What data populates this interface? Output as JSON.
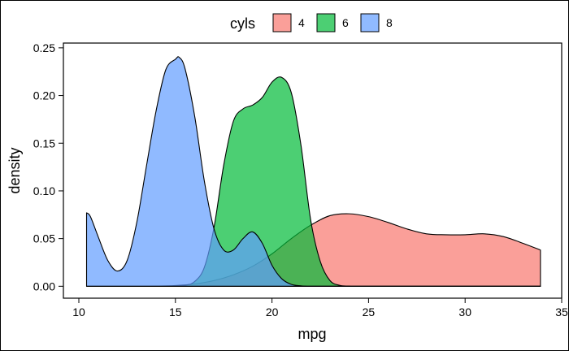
{
  "chart_data": {
    "type": "area",
    "subtype": "density",
    "xlabel": "mpg",
    "ylabel": "density",
    "xlim": [
      9.2,
      35
    ],
    "ylim": [
      -0.0125,
      0.255
    ],
    "x_ticks": [
      10,
      15,
      20,
      25,
      30,
      35
    ],
    "y_ticks": [
      0.0,
      0.05,
      0.1,
      0.15,
      0.2,
      0.25
    ],
    "y_tick_labels": [
      "0.00",
      "0.05",
      "0.10",
      "0.15",
      "0.20",
      "0.25"
    ],
    "grid": false,
    "legend": {
      "title": "cyls",
      "placement": "top"
    },
    "series": [
      {
        "name": "4",
        "color": "#F8766D",
        "x": [
          10.4,
          11,
          12,
          13,
          14,
          15,
          16,
          17,
          18,
          19,
          20,
          21,
          22,
          23,
          24,
          25,
          26,
          27,
          28,
          29,
          30,
          31,
          32,
          33,
          33.9
        ],
        "y": [
          0.0,
          0.0,
          0.0,
          0.0,
          0.0002,
          0.0008,
          0.0025,
          0.006,
          0.012,
          0.021,
          0.034,
          0.05,
          0.064,
          0.074,
          0.076,
          0.073,
          0.067,
          0.06,
          0.055,
          0.054,
          0.054,
          0.055,
          0.052,
          0.045,
          0.038
        ]
      },
      {
        "name": "6",
        "color": "#00BA38",
        "x": [
          10.4,
          14,
          15,
          15.5,
          16,
          16.5,
          17,
          17.5,
          18,
          18.5,
          19,
          19.5,
          20,
          20.5,
          21,
          21.5,
          22,
          22.5,
          23,
          23.5,
          24,
          25,
          33.9
        ],
        "y": [
          0.0,
          0.0,
          0.0003,
          0.001,
          0.005,
          0.02,
          0.062,
          0.127,
          0.173,
          0.186,
          0.19,
          0.198,
          0.214,
          0.219,
          0.203,
          0.148,
          0.07,
          0.026,
          0.006,
          0.001,
          0.0002,
          0.0,
          0.0
        ]
      },
      {
        "name": "8",
        "color": "#619CFF",
        "x": [
          10.4,
          10.6,
          11,
          11.5,
          12,
          12.5,
          13,
          13.5,
          14,
          14.5,
          15,
          15.2,
          15.5,
          16,
          16.5,
          17,
          17.5,
          18,
          18.5,
          19,
          19.5,
          20,
          20.5,
          21,
          21.5,
          22,
          23,
          24,
          33.9
        ],
        "y": [
          0.077,
          0.073,
          0.052,
          0.027,
          0.016,
          0.027,
          0.067,
          0.126,
          0.184,
          0.227,
          0.238,
          0.24,
          0.228,
          0.178,
          0.11,
          0.06,
          0.038,
          0.038,
          0.05,
          0.057,
          0.045,
          0.022,
          0.008,
          0.002,
          0.0005,
          0.0,
          0.0,
          0.0,
          0.0
        ]
      }
    ]
  }
}
